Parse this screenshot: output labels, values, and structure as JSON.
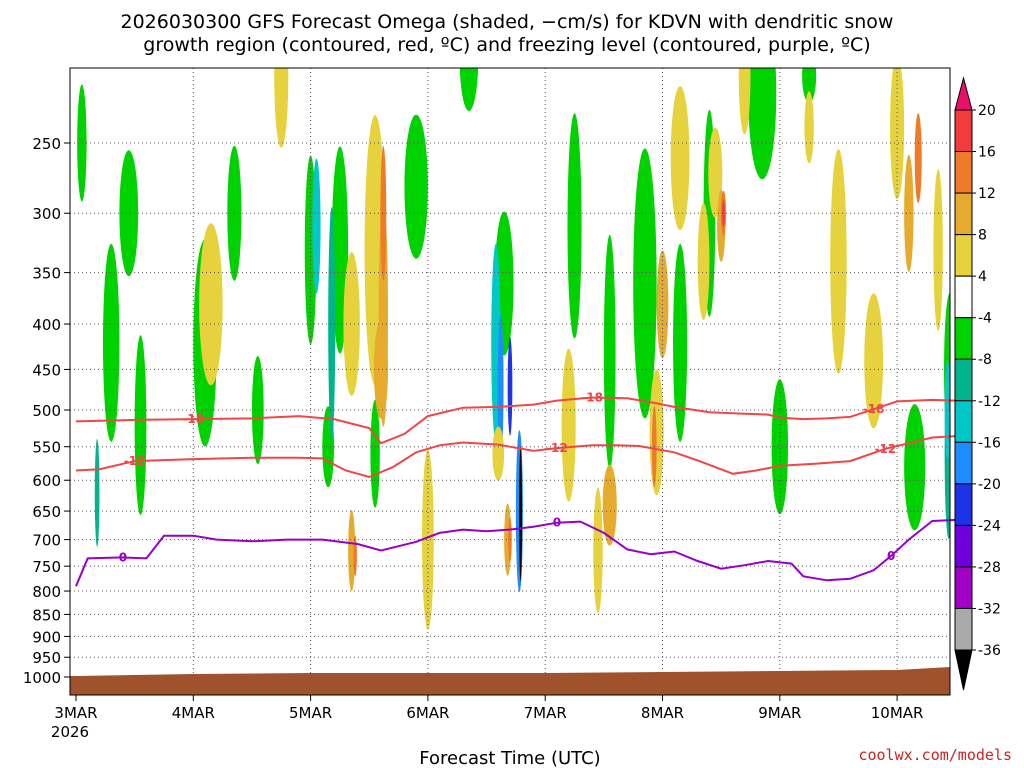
{
  "chart_data": {
    "type": "heatmap",
    "title_line1": "2026030300 GFS Forecast Omega (shaded, −cm/s) for KDVN with dendritic snow",
    "title_line2": "growth region (contoured, red, ºC) and freezing level (contoured, purple, ºC)",
    "xlabel": "Forecast Time (UTC)",
    "watermark": "coolwx.com/models",
    "x_ticks": [
      "3MAR",
      "4MAR",
      "5MAR",
      "6MAR",
      "7MAR",
      "8MAR",
      "9MAR",
      "10MAR"
    ],
    "x_year": "2026",
    "x_range_days": [
      0,
      7.5
    ],
    "y_ticks": [
      250,
      300,
      350,
      400,
      450,
      500,
      550,
      600,
      650,
      700,
      750,
      800,
      850,
      900,
      950,
      1000
    ],
    "y_range_hpa": [
      200,
      1025
    ],
    "colorbar": {
      "levels": [
        20,
        16,
        12,
        8,
        4,
        -4,
        -8,
        -12,
        -16,
        -20,
        -24,
        -28,
        -32,
        -36
      ],
      "colors": [
        "#e8106a",
        "#f23c3c",
        "#f07a28",
        "#e6aa2c",
        "#e6d23c",
        "#ffffff",
        "#00d200",
        "#00b48c",
        "#00c8c8",
        "#1e8cff",
        "#1e32e6",
        "#6e00dc",
        "#a000c8",
        "#aaaaaa",
        "#000000"
      ]
    },
    "surface_color": "#a0522d",
    "contours": [
      {
        "name": "dgz-minus-18",
        "label": "-18",
        "color": "#f04646",
        "points": [
          [
            0,
            515
          ],
          [
            0.5,
            513
          ],
          [
            1.0,
            512
          ],
          [
            1.5,
            511
          ],
          [
            1.9,
            508
          ],
          [
            2.2,
            512
          ],
          [
            2.5,
            524
          ],
          [
            2.6,
            545
          ],
          [
            2.8,
            532
          ],
          [
            3.0,
            508
          ],
          [
            3.3,
            497
          ],
          [
            3.6,
            496
          ],
          [
            3.9,
            493
          ],
          [
            4.1,
            488
          ],
          [
            4.4,
            484
          ],
          [
            4.7,
            485
          ],
          [
            4.9,
            490
          ],
          [
            5.1,
            496
          ],
          [
            5.4,
            503
          ],
          [
            5.7,
            505
          ],
          [
            5.9,
            506
          ],
          [
            6.0,
            510
          ],
          [
            6.2,
            512
          ],
          [
            6.4,
            511
          ],
          [
            6.6,
            509
          ],
          [
            6.8,
            499
          ],
          [
            7.0,
            489
          ],
          [
            7.3,
            487
          ],
          [
            7.5,
            488
          ]
        ]
      },
      {
        "name": "dgz-minus-12",
        "label": "-12",
        "color": "#f04646",
        "points": [
          [
            0,
            585
          ],
          [
            0.2,
            583
          ],
          [
            0.5,
            571
          ],
          [
            1.0,
            568
          ],
          [
            1.5,
            566
          ],
          [
            1.9,
            566
          ],
          [
            2.1,
            567
          ],
          [
            2.3,
            585
          ],
          [
            2.5,
            595
          ],
          [
            2.7,
            580
          ],
          [
            2.9,
            558
          ],
          [
            3.1,
            548
          ],
          [
            3.3,
            544
          ],
          [
            3.6,
            547
          ],
          [
            3.9,
            556
          ],
          [
            4.1,
            552
          ],
          [
            4.4,
            548
          ],
          [
            4.6,
            548
          ],
          [
            4.8,
            549
          ],
          [
            5.1,
            558
          ],
          [
            5.3,
            570
          ],
          [
            5.6,
            590
          ],
          [
            5.8,
            585
          ],
          [
            6.0,
            578
          ],
          [
            6.3,
            575
          ],
          [
            6.6,
            571
          ],
          [
            6.9,
            553
          ],
          [
            7.1,
            545
          ],
          [
            7.3,
            537
          ],
          [
            7.5,
            535
          ]
        ]
      },
      {
        "name": "freezing-level",
        "label": "0",
        "color": "#9600c8",
        "points": [
          [
            0,
            790
          ],
          [
            0.1,
            735
          ],
          [
            0.4,
            733
          ],
          [
            0.6,
            735
          ],
          [
            0.75,
            693
          ],
          [
            1.0,
            693
          ],
          [
            1.2,
            700
          ],
          [
            1.5,
            703
          ],
          [
            1.8,
            700
          ],
          [
            2.1,
            700
          ],
          [
            2.4,
            708
          ],
          [
            2.6,
            720
          ],
          [
            2.9,
            704
          ],
          [
            3.1,
            688
          ],
          [
            3.3,
            682
          ],
          [
            3.5,
            685
          ],
          [
            3.7,
            682
          ],
          [
            3.9,
            677
          ],
          [
            4.1,
            670
          ],
          [
            4.3,
            668
          ],
          [
            4.5,
            688
          ],
          [
            4.7,
            718
          ],
          [
            4.9,
            727
          ],
          [
            5.1,
            722
          ],
          [
            5.3,
            740
          ],
          [
            5.5,
            755
          ],
          [
            5.7,
            748
          ],
          [
            5.9,
            740
          ],
          [
            6.1,
            745
          ],
          [
            6.2,
            770
          ],
          [
            6.4,
            778
          ],
          [
            6.6,
            775
          ],
          [
            6.8,
            758
          ],
          [
            6.95,
            730
          ],
          [
            7.1,
            700
          ],
          [
            7.3,
            667
          ],
          [
            7.5,
            665
          ]
        ]
      }
    ]
  }
}
